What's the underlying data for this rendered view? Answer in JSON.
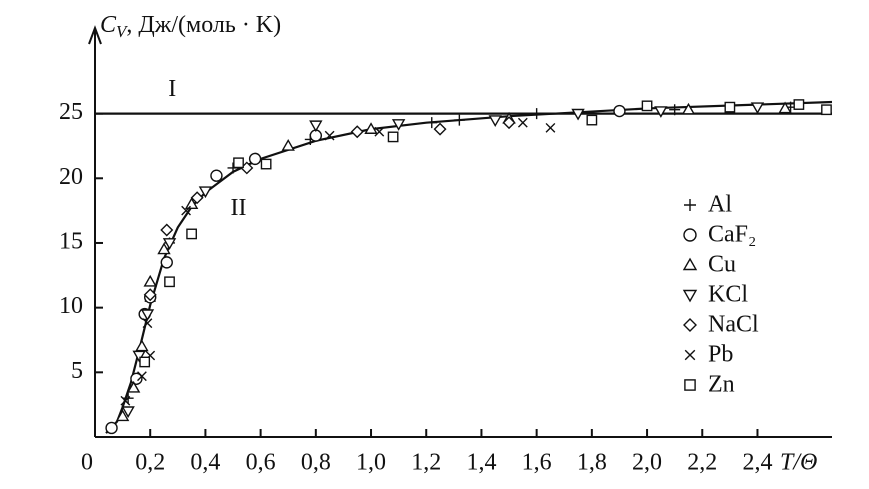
{
  "chart_data": {
    "type": "scatter",
    "y_label_symbol": "C",
    "y_label_subscript": "V",
    "y_label_unit": ", Дж/(моль · K)",
    "x_label": "T/Θ",
    "xlim": [
      0,
      2.67
    ],
    "ylim": [
      0,
      31
    ],
    "xticks": [
      0,
      {
        "value": 0.2,
        "label": "0,2"
      },
      {
        "value": 0.4,
        "label": "0,4"
      },
      {
        "value": 0.6,
        "label": "0,6"
      },
      {
        "value": 0.8,
        "label": "0,8"
      },
      {
        "value": 1.0,
        "label": "1,0"
      },
      {
        "value": 1.2,
        "label": "1,2"
      },
      {
        "value": 1.4,
        "label": "1,4"
      },
      {
        "value": 1.6,
        "label": "1,6"
      },
      {
        "value": 1.8,
        "label": "1,8"
      },
      {
        "value": 2.0,
        "label": "2,0"
      },
      {
        "value": 2.2,
        "label": "2,2"
      },
      {
        "value": 2.4,
        "label": "2,4"
      }
    ],
    "yticks": [
      5,
      10,
      15,
      20,
      25
    ],
    "lines": [
      {
        "name": "I",
        "x": [
          0,
          2.67
        ],
        "values": [
          25,
          25
        ]
      },
      {
        "name": "II",
        "x": [
          0.04,
          0.08,
          0.1,
          0.13,
          0.16,
          0.2,
          0.25,
          0.3,
          0.35,
          0.4,
          0.5,
          0.6,
          0.8,
          1.0,
          1.2,
          1.5,
          2.0,
          2.67
        ],
        "values": [
          0.3,
          1.2,
          2.3,
          4.2,
          6.7,
          10.2,
          13.8,
          16.2,
          17.8,
          18.9,
          20.5,
          21.5,
          22.9,
          23.8,
          24.3,
          24.8,
          25.4,
          25.9
        ]
      }
    ],
    "series": [
      {
        "name": "Al",
        "marker": "plus",
        "x": [
          0.12,
          0.2,
          0.27,
          0.5,
          0.78,
          1.22,
          1.32,
          1.6,
          2.1,
          2.52
        ],
        "values": [
          3,
          10.5,
          15,
          20.8,
          23,
          24.3,
          24.5,
          25,
          25.3,
          25.5
        ]
      },
      {
        "name": "CaF₂",
        "marker": "circle",
        "x": [
          0.06,
          0.15,
          0.18,
          0.2,
          0.26,
          0.44,
          0.58,
          0.8,
          1.9
        ],
        "values": [
          0.7,
          4.5,
          9.5,
          10.8,
          13.5,
          20.2,
          21.5,
          23.3,
          25.2
        ]
      },
      {
        "name": "Cu",
        "marker": "triangle",
        "x": [
          0.1,
          0.14,
          0.17,
          0.2,
          0.25,
          0.35,
          0.7,
          1.0,
          1.5,
          2.15,
          2.5
        ],
        "values": [
          1.6,
          3.8,
          7,
          12,
          14.5,
          18,
          22.5,
          23.8,
          24.6,
          25.3,
          25.4
        ]
      },
      {
        "name": "KCl",
        "marker": "triangle-down",
        "x": [
          0.12,
          0.16,
          0.19,
          0.27,
          0.4,
          0.8,
          1.1,
          1.45,
          1.75,
          2.05,
          2.4
        ],
        "values": [
          2,
          6.3,
          9.5,
          15,
          19,
          24.1,
          24.2,
          24.5,
          25,
          25.2,
          25.5
        ]
      },
      {
        "name": "NaCl",
        "marker": "diamond",
        "x": [
          0.2,
          0.26,
          0.37,
          0.55,
          0.95,
          1.25,
          1.5
        ],
        "values": [
          11,
          16,
          18.5,
          20.8,
          23.6,
          23.8,
          24.3
        ]
      },
      {
        "name": "Pb",
        "marker": "x",
        "x": [
          0.11,
          0.17,
          0.19,
          0.2,
          0.33,
          0.85,
          1.03,
          1.55,
          1.65
        ],
        "values": [
          2.8,
          4.7,
          8.8,
          6.3,
          17.5,
          23.3,
          23.6,
          24.3,
          23.9
        ]
      },
      {
        "name": "Zn",
        "marker": "square",
        "x": [
          0.18,
          0.27,
          0.35,
          0.52,
          0.62,
          1.08,
          1.8,
          2.0,
          2.3,
          2.55,
          2.65
        ],
        "values": [
          5.8,
          12,
          15.7,
          21.2,
          21.1,
          23.2,
          24.5,
          25.6,
          25.5,
          25.7,
          25.3
        ]
      }
    ]
  }
}
